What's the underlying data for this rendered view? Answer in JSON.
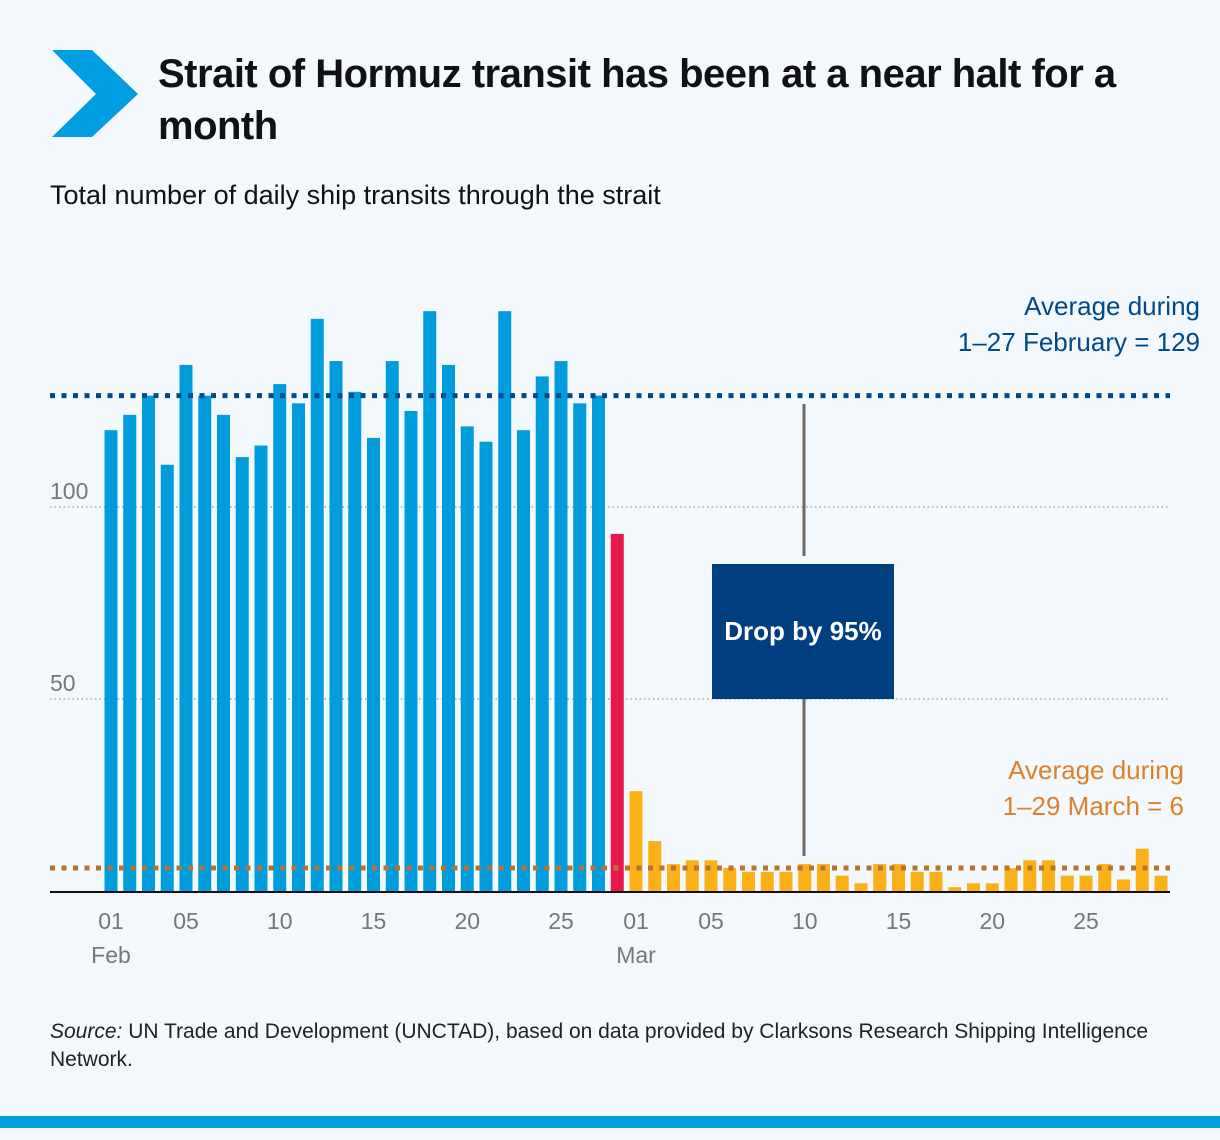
{
  "title": "Strait of Hormuz transit has been at a near halt for a month",
  "subtitle": "Total number of daily ship transits through the strait",
  "source_label": "Source:",
  "source_text": " UN Trade and Development (UNCTAD), based on data provided by Clarksons Research Shipping Intelligence Network.",
  "annotations": {
    "feb_avg_line1": "Average during",
    "feb_avg_line2": "1–27 February = 129",
    "mar_avg_line1": "Average during",
    "mar_avg_line2": "1–29 March = 6",
    "drop": "Drop by 95%"
  },
  "colors": {
    "feb": "#009cdb",
    "feb28": "#e8174c",
    "mar": "#fbb017",
    "feb_avg": "#004a8a",
    "mar_avg": "#b87331",
    "box": "#003f7f",
    "brand": "#009ee0"
  },
  "chart_data": {
    "type": "bar",
    "title": "Total number of daily ship transits through the strait",
    "ylim": [
      0,
      155
    ],
    "y_ticks": [
      50,
      100
    ],
    "grid": true,
    "x_ticks": [
      {
        "day": 1,
        "label": "01",
        "sub": "Feb"
      },
      {
        "day": 5,
        "label": "05"
      },
      {
        "day": 10,
        "label": "10"
      },
      {
        "day": 15,
        "label": "15"
      },
      {
        "day": 20,
        "label": "20"
      },
      {
        "day": 25,
        "label": "25"
      },
      {
        "day": 29,
        "label": "01",
        "sub": "Mar"
      },
      {
        "day": 33,
        "label": "05"
      },
      {
        "day": 38,
        "label": "10"
      },
      {
        "day": 43,
        "label": "15"
      },
      {
        "day": 48,
        "label": "20"
      },
      {
        "day": 53,
        "label": "25"
      }
    ],
    "series": [
      {
        "period": "1–27 February",
        "values": [
          120,
          124,
          129,
          111,
          137,
          129,
          124,
          113,
          116,
          132,
          127,
          149,
          138,
          130,
          118,
          138,
          125,
          151,
          137,
          121,
          117,
          151,
          120,
          134,
          138,
          127,
          129
        ]
      },
      {
        "period": "28 February",
        "values": [
          93
        ]
      },
      {
        "period": "1–29 March",
        "values": [
          26,
          13,
          7,
          8,
          8,
          6,
          5,
          5,
          5,
          7,
          7,
          4,
          2,
          7,
          7,
          5,
          5,
          1,
          2,
          2,
          6,
          8,
          8,
          4,
          4,
          7,
          3,
          11,
          4
        ]
      }
    ],
    "reference_lines": [
      {
        "label": "Average during 1–27 February = 129",
        "value": 129
      },
      {
        "label": "Average during 1–29 March = 6",
        "value": 6
      }
    ]
  }
}
